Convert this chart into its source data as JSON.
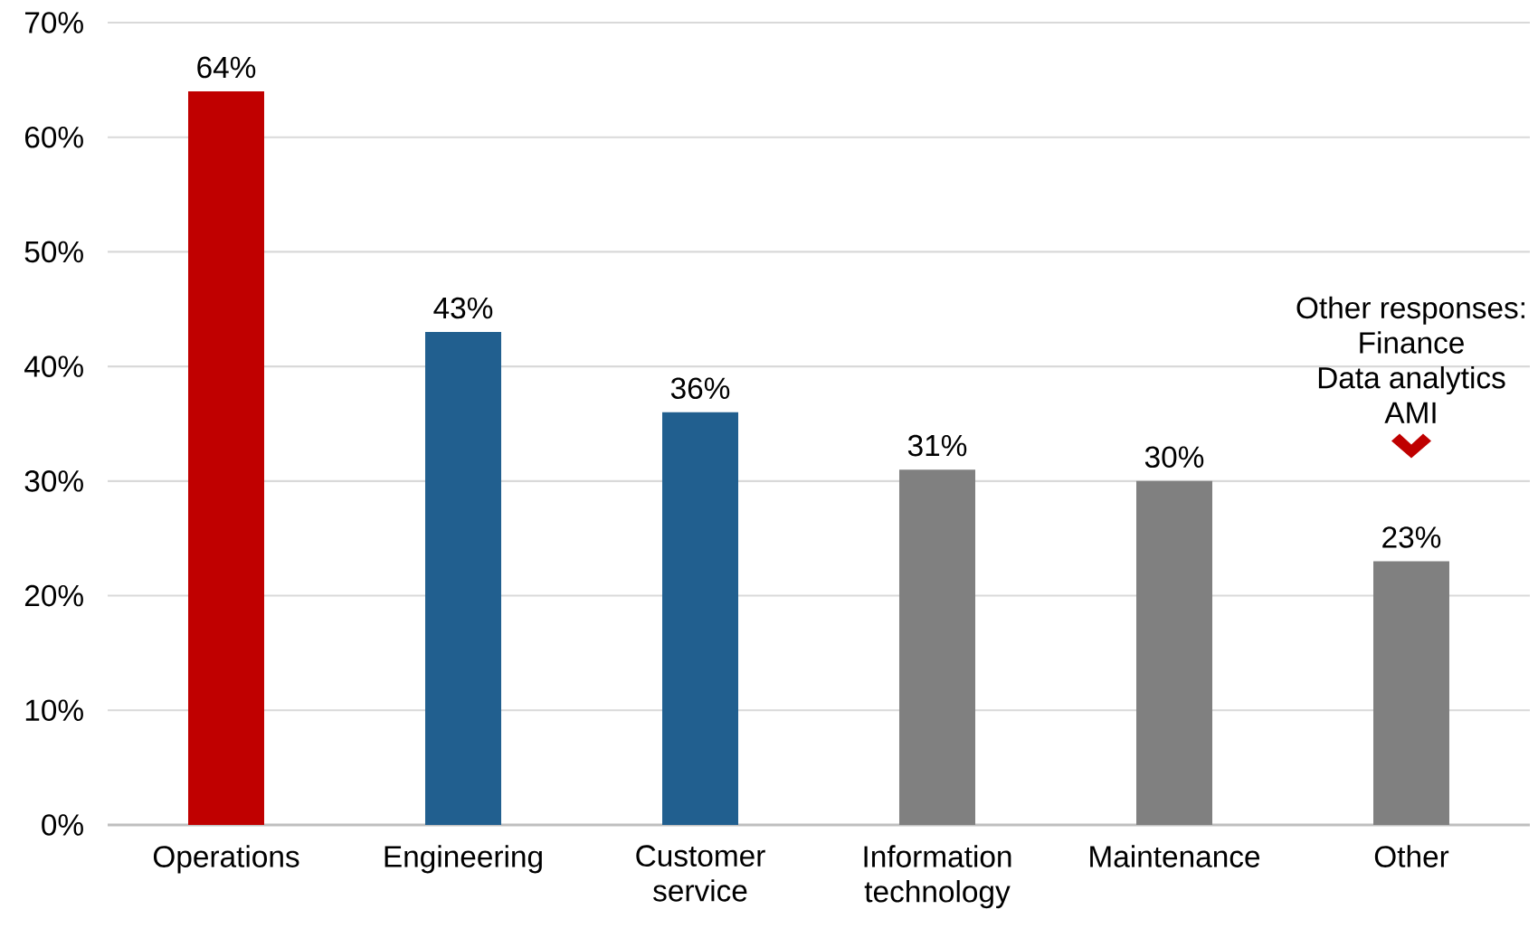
{
  "chart_data": {
    "type": "bar",
    "categories": [
      "Operations",
      "Engineering",
      "Customer service",
      "Information technology",
      "Maintenance",
      "Other"
    ],
    "values": [
      64,
      43,
      36,
      31,
      30,
      23
    ],
    "colors": [
      "#c00000",
      "#215f8f",
      "#215f8f",
      "#808080",
      "#808080",
      "#808080"
    ],
    "value_labels": [
      "64%",
      "43%",
      "36%",
      "31%",
      "30%",
      "23%"
    ],
    "ylim": [
      0,
      70
    ],
    "yticks": [
      {
        "value": 0,
        "label": "0%"
      },
      {
        "value": 10,
        "label": "10%"
      },
      {
        "value": 20,
        "label": "20%"
      },
      {
        "value": 30,
        "label": "30%"
      },
      {
        "value": 40,
        "label": "40%"
      },
      {
        "value": 50,
        "label": "50%"
      },
      {
        "value": 60,
        "label": "60%"
      },
      {
        "value": 70,
        "label": "70%"
      }
    ],
    "grid": "y",
    "annotations": [
      "Other responses:",
      "Finance",
      "Data analytics",
      "AMI"
    ]
  }
}
